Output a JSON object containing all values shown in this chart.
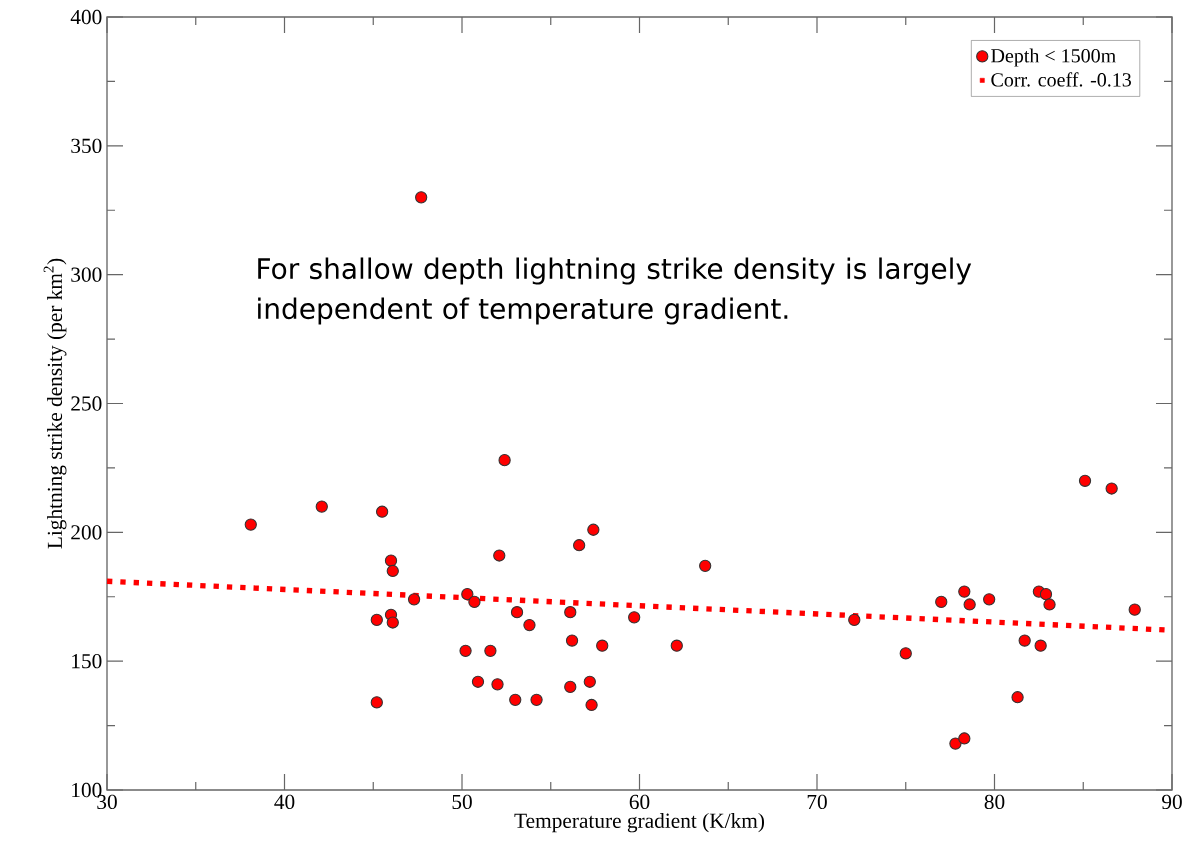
{
  "chart_data": {
    "type": "scatter",
    "xlabel": "Temperature gradient (K/km)",
    "ylabel": "Lightning strike density (per km$^{2}$)",
    "xlim": [
      30,
      90
    ],
    "ylim": [
      100,
      400
    ],
    "xticks": [
      30,
      40,
      50,
      60,
      70,
      80,
      90
    ],
    "yticks": [
      100,
      150,
      200,
      250,
      300,
      350,
      400
    ],
    "grid": false,
    "legend": "top right",
    "annotations": [
      "For shallow depth lightning strike density is largely independent of temperature gradient."
    ],
    "series": [
      {
        "name": "Depth < 1500m",
        "type": "scatter",
        "marker": "circle",
        "color": "#ff0000",
        "x": [
          38.1,
          42.1,
          45.5,
          46.0,
          46.1,
          47.3,
          45.2,
          46.0,
          46.1,
          45.2,
          47.7,
          50.3,
          50.7,
          50.2,
          50.9,
          52.4,
          52.1,
          53.1,
          53.8,
          56.1,
          56.6,
          57.4,
          51.6,
          56.2,
          57.9,
          59.7,
          62.1,
          63.7,
          52.0,
          53.0,
          54.2,
          56.1,
          57.2,
          57.3,
          72.1,
          75.0,
          77.0,
          78.3,
          78.6,
          79.7,
          77.8,
          78.3,
          81.3,
          81.7,
          82.6,
          82.5,
          82.9,
          83.1,
          85.1,
          86.6,
          87.9
        ],
        "values": [
          203,
          210,
          208,
          189,
          185,
          174,
          166,
          168,
          165,
          134,
          330,
          176,
          173,
          154,
          142,
          228,
          191,
          169,
          164,
          169,
          195,
          201,
          154,
          158,
          156,
          167,
          156,
          187,
          141,
          135,
          135,
          140,
          142,
          133,
          166,
          153,
          173,
          177,
          172,
          174,
          118,
          120,
          136,
          158,
          156,
          177,
          176,
          172,
          220,
          217,
          170
        ]
      },
      {
        "name": "Corr. coeff. -0.13",
        "type": "line",
        "marker": "none",
        "line_style": "dotted",
        "color": "#ff0000",
        "x": [
          30,
          90
        ],
        "values": [
          181,
          162
        ]
      }
    ]
  }
}
